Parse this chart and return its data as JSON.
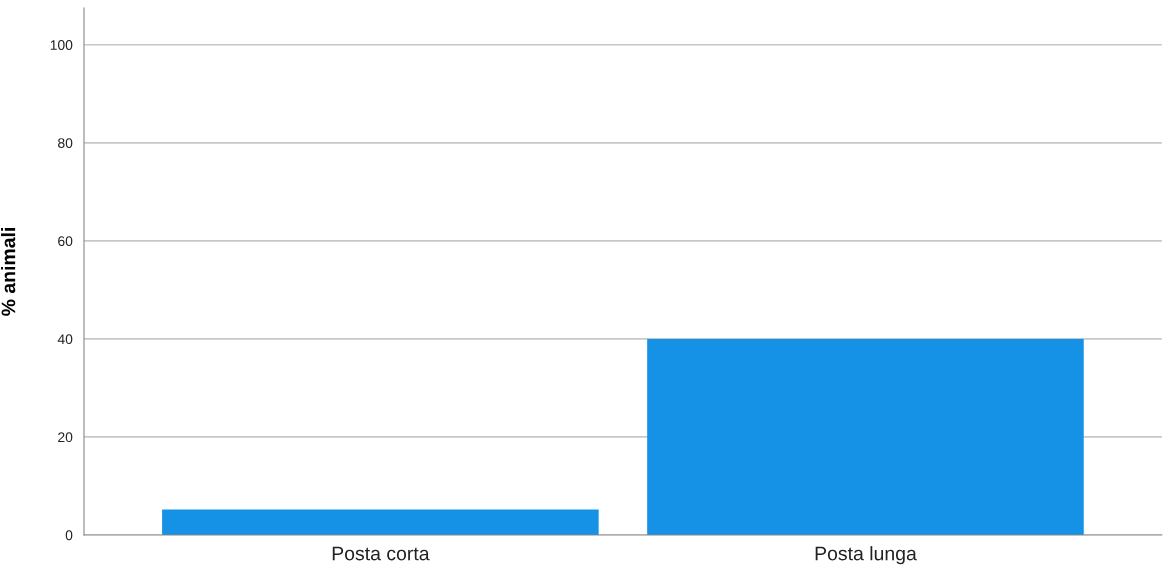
{
  "chart_data": {
    "type": "bar",
    "ylabel": "% animali",
    "categories": [
      "Posta corta",
      "Posta lunga"
    ],
    "values": [
      5.2,
      40
    ],
    "color": "#1591e6",
    "ylim": [
      0,
      107.5
    ],
    "yticks": [
      0,
      20,
      40,
      60,
      80,
      100
    ],
    "grid": "y"
  }
}
